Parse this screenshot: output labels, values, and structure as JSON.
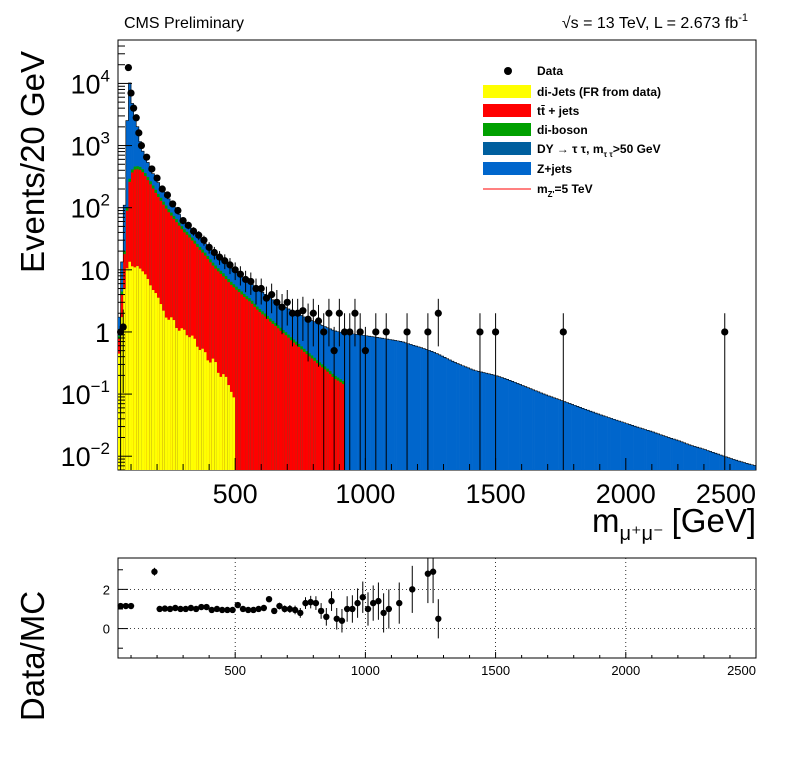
{
  "header": {
    "left": "CMS Preliminary",
    "right_prefix": "√s = 13 TeV, L = 2.673 fb",
    "right_sup": "-1"
  },
  "chart_data": [
    {
      "type": "histogram-stacked-log",
      "xlim": [
        50,
        2500
      ],
      "ylim": [
        0.006,
        50000
      ],
      "log_y": true,
      "xlabel": "m",
      "xlabel_sub": "μ⁺μ⁻",
      "xlabel_unit": "[GeV]",
      "ylabel": "Events/20 GeV",
      "x_ticks": [
        "500",
        "1000",
        "1500",
        "2000",
        "2500"
      ],
      "x_tick_values": [
        500,
        1000,
        1500,
        2000,
        2500
      ],
      "y_ticks": [
        {
          "value": 10000,
          "base": "10",
          "exp": "4"
        },
        {
          "value": 1000,
          "base": "10",
          "exp": "3"
        },
        {
          "value": 100,
          "base": "10",
          "exp": "2"
        },
        {
          "value": 10,
          "base": "10",
          "exp": ""
        },
        {
          "value": 1,
          "base": "1",
          "exp": ""
        },
        {
          "value": 0.1,
          "base": "10",
          "exp": "−1"
        },
        {
          "value": 0.01,
          "base": "10",
          "exp": "−2"
        }
      ],
      "legend": [
        {
          "label": "Data",
          "kind": "marker"
        },
        {
          "label": "di-Jets (FR from data)",
          "kind": "fill",
          "color": "#ffff00"
        },
        {
          "label": "tt̄ + jets",
          "kind": "fill",
          "color": "#ff0000"
        },
        {
          "label": "di-boson",
          "kind": "fill",
          "color": "#00a000"
        },
        {
          "label": "DY → τ τ, m",
          "sub": "τ τ",
          "suffix": ">50 GeV",
          "kind": "fill",
          "color": "#005f9e"
        },
        {
          "label": "Z+jets",
          "kind": "fill",
          "color": "#0066cc"
        },
        {
          "label": "m",
          "sub": "Z'",
          "suffix": "=5 TeV",
          "kind": "line",
          "color": "#ff0000"
        }
      ],
      "colors": {
        "dijets": "#ffff00",
        "ttbar": "#ff0000",
        "diboson": "#00a000",
        "dytautau": "#005f9e",
        "zjets": "#0066cc"
      },
      "series": {
        "total": [
          [
            50,
            0.5
          ],
          [
            60,
            6
          ],
          [
            70,
            30
          ],
          [
            80,
            400
          ],
          [
            90,
            16000
          ],
          [
            100,
            6500
          ],
          [
            110,
            3500
          ],
          [
            120,
            2700
          ],
          [
            130,
            1500
          ],
          [
            140,
            900
          ],
          [
            160,
            600
          ],
          [
            180,
            380
          ],
          [
            200,
            280
          ],
          [
            220,
            190
          ],
          [
            240,
            150
          ],
          [
            260,
            110
          ],
          [
            280,
            85
          ],
          [
            300,
            60
          ],
          [
            320,
            50
          ],
          [
            340,
            40
          ],
          [
            360,
            34
          ],
          [
            380,
            28
          ],
          [
            400,
            22
          ],
          [
            420,
            18
          ],
          [
            440,
            15
          ],
          [
            460,
            13
          ],
          [
            480,
            11
          ],
          [
            500,
            9.5
          ],
          [
            520,
            8
          ],
          [
            540,
            7
          ],
          [
            560,
            6
          ],
          [
            580,
            5.2
          ],
          [
            600,
            4.5
          ],
          [
            620,
            3.9
          ],
          [
            640,
            3.4
          ],
          [
            660,
            3
          ],
          [
            680,
            2.7
          ],
          [
            700,
            2.4
          ],
          [
            720,
            2.2
          ],
          [
            740,
            2
          ],
          [
            760,
            1.8
          ],
          [
            780,
            1.6
          ],
          [
            800,
            1.5
          ],
          [
            820,
            1.35
          ],
          [
            840,
            1.25
          ],
          [
            860,
            1.15
          ],
          [
            880,
            1.05
          ],
          [
            900,
            1
          ],
          [
            940,
            0.95
          ],
          [
            980,
            0.9
          ],
          [
            1020,
            0.85
          ],
          [
            1060,
            0.8
          ],
          [
            1100,
            0.75
          ],
          [
            1140,
            0.7
          ],
          [
            1180,
            0.62
          ],
          [
            1220,
            0.55
          ],
          [
            1260,
            0.48
          ],
          [
            1300,
            0.4
          ],
          [
            1340,
            0.33
          ],
          [
            1380,
            0.28
          ],
          [
            1420,
            0.24
          ],
          [
            1460,
            0.22
          ],
          [
            1500,
            0.2
          ],
          [
            1550,
            0.17
          ],
          [
            1600,
            0.14
          ],
          [
            1650,
            0.115
          ],
          [
            1700,
            0.095
          ],
          [
            1750,
            0.08
          ],
          [
            1800,
            0.067
          ],
          [
            1850,
            0.056
          ],
          [
            1900,
            0.047
          ],
          [
            1950,
            0.04
          ],
          [
            2000,
            0.034
          ],
          [
            2050,
            0.029
          ],
          [
            2100,
            0.025
          ],
          [
            2150,
            0.021
          ],
          [
            2200,
            0.018
          ],
          [
            2250,
            0.015
          ],
          [
            2300,
            0.013
          ],
          [
            2350,
            0.011
          ],
          [
            2400,
            0.0093
          ],
          [
            2450,
            0.008
          ],
          [
            2500,
            0.007
          ]
        ],
        "ttbar_top": [
          [
            50,
            0.3
          ],
          [
            60,
            2
          ],
          [
            70,
            8
          ],
          [
            80,
            40
          ],
          [
            90,
            200
          ],
          [
            100,
            340
          ],
          [
            110,
            400
          ],
          [
            120,
            420
          ],
          [
            140,
            400
          ],
          [
            160,
            300
          ],
          [
            180,
            220
          ],
          [
            200,
            160
          ],
          [
            220,
            120
          ],
          [
            240,
            90
          ],
          [
            260,
            70
          ],
          [
            280,
            55
          ],
          [
            300,
            42
          ],
          [
            320,
            35
          ],
          [
            340,
            28
          ],
          [
            360,
            22
          ],
          [
            380,
            18
          ],
          [
            400,
            14
          ],
          [
            420,
            11
          ],
          [
            440,
            9
          ],
          [
            460,
            7.5
          ],
          [
            480,
            6
          ],
          [
            500,
            5
          ],
          [
            520,
            4.2
          ],
          [
            540,
            3.5
          ],
          [
            560,
            3
          ],
          [
            580,
            2.4
          ],
          [
            600,
            2
          ],
          [
            620,
            1.7
          ],
          [
            640,
            1.4
          ],
          [
            660,
            1.2
          ],
          [
            680,
            1
          ],
          [
            700,
            0.85
          ],
          [
            720,
            0.7
          ],
          [
            740,
            0.6
          ],
          [
            760,
            0.5
          ],
          [
            780,
            0.42
          ],
          [
            800,
            0.36
          ],
          [
            820,
            0.3
          ],
          [
            840,
            0.26
          ],
          [
            860,
            0.22
          ],
          [
            880,
            0.18
          ],
          [
            900,
            0.16
          ],
          [
            920,
            0.14
          ]
        ],
        "dijets_top": [
          [
            50,
            0.2
          ],
          [
            60,
            1
          ],
          [
            70,
            3
          ],
          [
            80,
            8
          ],
          [
            90,
            14
          ],
          [
            100,
            13
          ],
          [
            110,
            10
          ],
          [
            120,
            12
          ],
          [
            140,
            10
          ],
          [
            160,
            8
          ],
          [
            180,
            5
          ],
          [
            200,
            4
          ],
          [
            220,
            2.5
          ],
          [
            240,
            1.5
          ],
          [
            260,
            1.8
          ],
          [
            280,
            1
          ],
          [
            300,
            1.2
          ],
          [
            320,
            0.8
          ],
          [
            340,
            0.9
          ],
          [
            360,
            0.5
          ],
          [
            380,
            0.55
          ],
          [
            400,
            0.3
          ],
          [
            420,
            0.4
          ],
          [
            440,
            0.18
          ],
          [
            460,
            0.22
          ],
          [
            480,
            0.12
          ],
          [
            500,
            0.08
          ]
        ],
        "data_points": [
          [
            60,
            1
          ],
          [
            70,
            1.2
          ],
          [
            90,
            18000
          ],
          [
            100,
            7000
          ],
          [
            110,
            4000
          ],
          [
            120,
            2800
          ],
          [
            130,
            1600
          ],
          [
            140,
            1000
          ],
          [
            160,
            650
          ],
          [
            180,
            420
          ],
          [
            200,
            300
          ],
          [
            220,
            200
          ],
          [
            240,
            160
          ],
          [
            260,
            115
          ],
          [
            280,
            90
          ],
          [
            300,
            62
          ],
          [
            320,
            52
          ],
          [
            340,
            42
          ],
          [
            360,
            36
          ],
          [
            380,
            30
          ],
          [
            400,
            23
          ],
          [
            420,
            19
          ],
          [
            440,
            16
          ],
          [
            460,
            14
          ],
          [
            480,
            12
          ],
          [
            500,
            10
          ],
          [
            520,
            8.5
          ],
          [
            540,
            7
          ],
          [
            560,
            6.5
          ],
          [
            580,
            5
          ],
          [
            600,
            5
          ],
          [
            620,
            3.5
          ],
          [
            640,
            4
          ],
          [
            660,
            3
          ],
          [
            680,
            2.5
          ],
          [
            700,
            3
          ],
          [
            720,
            2
          ],
          [
            740,
            2
          ],
          [
            760,
            2.2
          ],
          [
            780,
            1.6
          ],
          [
            800,
            2
          ],
          [
            820,
            1.5
          ],
          [
            840,
            1
          ],
          [
            860,
            2
          ],
          [
            880,
            0.5
          ],
          [
            900,
            2
          ],
          [
            920,
            1
          ],
          [
            940,
            1
          ],
          [
            960,
            2
          ],
          [
            980,
            1
          ],
          [
            1000,
            0.5
          ],
          [
            1040,
            1
          ],
          [
            1080,
            1
          ],
          [
            1160,
            1
          ],
          [
            1240,
            1
          ],
          [
            1280,
            2
          ],
          [
            1440,
            1
          ],
          [
            1500,
            1
          ],
          [
            1760,
            1
          ],
          [
            2380,
            1
          ]
        ]
      }
    },
    {
      "type": "ratio-scatter",
      "xlim": [
        50,
        2500
      ],
      "ylim": [
        -1.5,
        3.6
      ],
      "ylabel": "Data/MC",
      "x_ticks": [
        "500",
        "1000",
        "1500",
        "2000",
        "2500"
      ],
      "x_tick_values": [
        500,
        1000,
        1500,
        2000,
        2500
      ],
      "y_ticks": [
        "0",
        "2"
      ],
      "y_tick_values": [
        0,
        2
      ],
      "points": [
        [
          60,
          1.15,
          0.1
        ],
        [
          80,
          1.15,
          0.08
        ],
        [
          100,
          1.15,
          0.05
        ],
        [
          190,
          2.9,
          0.2
        ],
        [
          210,
          1.0,
          0.05
        ],
        [
          230,
          1.02,
          0.05
        ],
        [
          250,
          1.0,
          0.05
        ],
        [
          270,
          1.05,
          0.05
        ],
        [
          290,
          1.0,
          0.05
        ],
        [
          310,
          1.0,
          0.06
        ],
        [
          330,
          1.05,
          0.06
        ],
        [
          350,
          1.0,
          0.06
        ],
        [
          370,
          1.1,
          0.07
        ],
        [
          390,
          1.1,
          0.07
        ],
        [
          410,
          0.95,
          0.07
        ],
        [
          430,
          1.0,
          0.08
        ],
        [
          450,
          0.95,
          0.08
        ],
        [
          470,
          0.95,
          0.08
        ],
        [
          490,
          0.95,
          0.08
        ],
        [
          510,
          1.2,
          0.09
        ],
        [
          530,
          1.0,
          0.1
        ],
        [
          550,
          0.95,
          0.1
        ],
        [
          570,
          0.95,
          0.11
        ],
        [
          590,
          1.0,
          0.12
        ],
        [
          610,
          1.05,
          0.12
        ],
        [
          630,
          1.5,
          0.15
        ],
        [
          650,
          0.9,
          0.15
        ],
        [
          670,
          1.15,
          0.17
        ],
        [
          690,
          1.0,
          0.18
        ],
        [
          710,
          1.0,
          0.2
        ],
        [
          730,
          0.95,
          0.22
        ],
        [
          750,
          0.8,
          0.25
        ],
        [
          770,
          1.3,
          0.3
        ],
        [
          790,
          1.35,
          0.32
        ],
        [
          810,
          1.3,
          0.35
        ],
        [
          830,
          0.9,
          0.4
        ],
        [
          850,
          0.6,
          0.45
        ],
        [
          870,
          1.4,
          0.5
        ],
        [
          890,
          0.5,
          0.55
        ],
        [
          910,
          0.4,
          0.6
        ],
        [
          930,
          1.0,
          0.65
        ],
        [
          950,
          1.0,
          0.7
        ],
        [
          970,
          1.3,
          0.75
        ],
        [
          990,
          1.6,
          0.8
        ],
        [
          1010,
          1.0,
          0.85
        ],
        [
          1030,
          1.3,
          0.9
        ],
        [
          1050,
          1.4,
          0.95
        ],
        [
          1070,
          0.8,
          1.0
        ],
        [
          1090,
          1.0,
          1.0
        ],
        [
          1130,
          1.3,
          1.05
        ],
        [
          1180,
          2.0,
          1.2
        ],
        [
          1240,
          2.8,
          1.5
        ],
        [
          1260,
          2.9,
          1.6
        ],
        [
          1280,
          0.5,
          1.0
        ]
      ]
    }
  ]
}
